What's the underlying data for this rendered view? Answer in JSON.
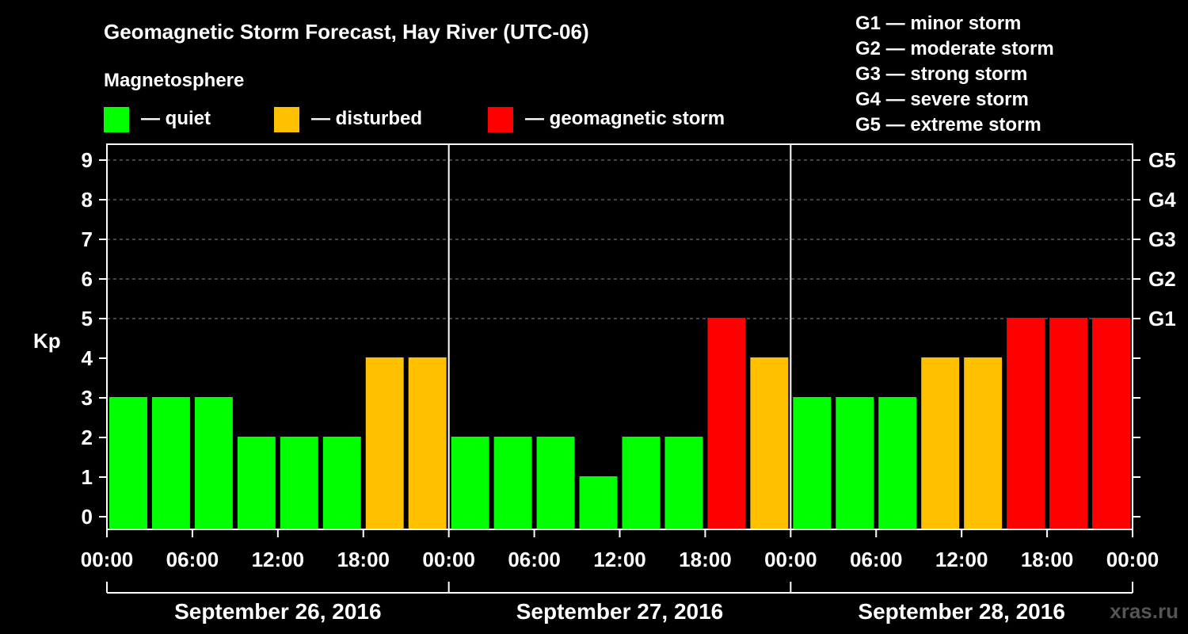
{
  "chart_data": {
    "type": "bar",
    "title": "Geomagnetic Storm Forecast, Hay River (UTC-06)",
    "legend_heading": "Magnetosphere",
    "legend": [
      {
        "label": "— quiet",
        "color": "#00ff00"
      },
      {
        "label": "— disturbed",
        "color": "#ffc000"
      },
      {
        "label": "— geomagnetic storm",
        "color": "#ff0000"
      }
    ],
    "g_scale": [
      "G1 — minor storm",
      "G2 — moderate storm",
      "G3 — strong storm",
      "G4 — severe storm",
      "G5 — extreme storm"
    ],
    "ylabel": "Kp",
    "ylim": [
      0,
      9
    ],
    "yticks": [
      "0",
      "1",
      "2",
      "3",
      "4",
      "5",
      "6",
      "7",
      "8",
      "9"
    ],
    "right_ticks": [
      {
        "kp": 5,
        "label": "G1"
      },
      {
        "kp": 6,
        "label": "G2"
      },
      {
        "kp": 7,
        "label": "G3"
      },
      {
        "kp": 8,
        "label": "G4"
      },
      {
        "kp": 9,
        "label": "G5"
      }
    ],
    "xtick_labels": [
      "00:00",
      "06:00",
      "12:00",
      "18:00",
      "00:00",
      "06:00",
      "12:00",
      "18:00",
      "00:00",
      "06:00",
      "12:00",
      "18:00",
      "00:00"
    ],
    "days": [
      "September 26, 2016",
      "September 27, 2016",
      "September 28, 2016"
    ],
    "values": [
      3,
      3,
      3,
      2,
      2,
      2,
      4,
      4,
      2,
      2,
      2,
      1,
      2,
      2,
      5,
      4,
      3,
      3,
      3,
      4,
      4,
      5,
      5,
      5
    ],
    "status": [
      "quiet",
      "quiet",
      "quiet",
      "quiet",
      "quiet",
      "quiet",
      "disturbed",
      "disturbed",
      "quiet",
      "quiet",
      "quiet",
      "quiet",
      "quiet",
      "quiet",
      "storm",
      "disturbed",
      "quiet",
      "quiet",
      "quiet",
      "disturbed",
      "disturbed",
      "storm",
      "storm",
      "storm"
    ],
    "colors": {
      "quiet": "#00ff00",
      "disturbed": "#ffc000",
      "storm": "#ff0000"
    },
    "grid": true
  },
  "watermark": "xras.ru"
}
